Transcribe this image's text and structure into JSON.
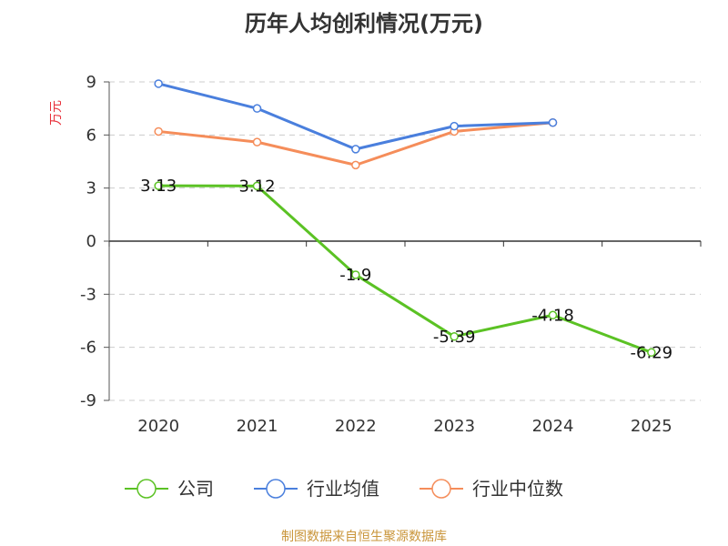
{
  "chart_data": {
    "type": "line",
    "title": "历年人均创利情况(万元)",
    "ylabel": "万元",
    "xlabel": "",
    "categories": [
      "2020",
      "2021",
      "2022",
      "2023",
      "2024",
      "2025"
    ],
    "ylim": [
      -9,
      9
    ],
    "yticks": [
      9,
      6,
      3,
      0,
      -3,
      -6,
      -9
    ],
    "grid": true,
    "legend_position": "bottom",
    "series": [
      {
        "name": "公司",
        "color": "#5bc224",
        "values": [
          3.13,
          3.12,
          -1.9,
          -5.39,
          -4.18,
          -6.29
        ],
        "show_labels": true
      },
      {
        "name": "行业均值",
        "color": "#4a7fdd",
        "values": [
          8.9,
          7.5,
          5.2,
          6.5,
          6.7,
          null
        ],
        "show_labels": false
      },
      {
        "name": "行业中位数",
        "color": "#f58d5a",
        "values": [
          6.2,
          5.6,
          4.3,
          6.2,
          6.7,
          null
        ],
        "show_labels": false
      }
    ]
  },
  "source_text": "制图数据来自恒生聚源数据库"
}
